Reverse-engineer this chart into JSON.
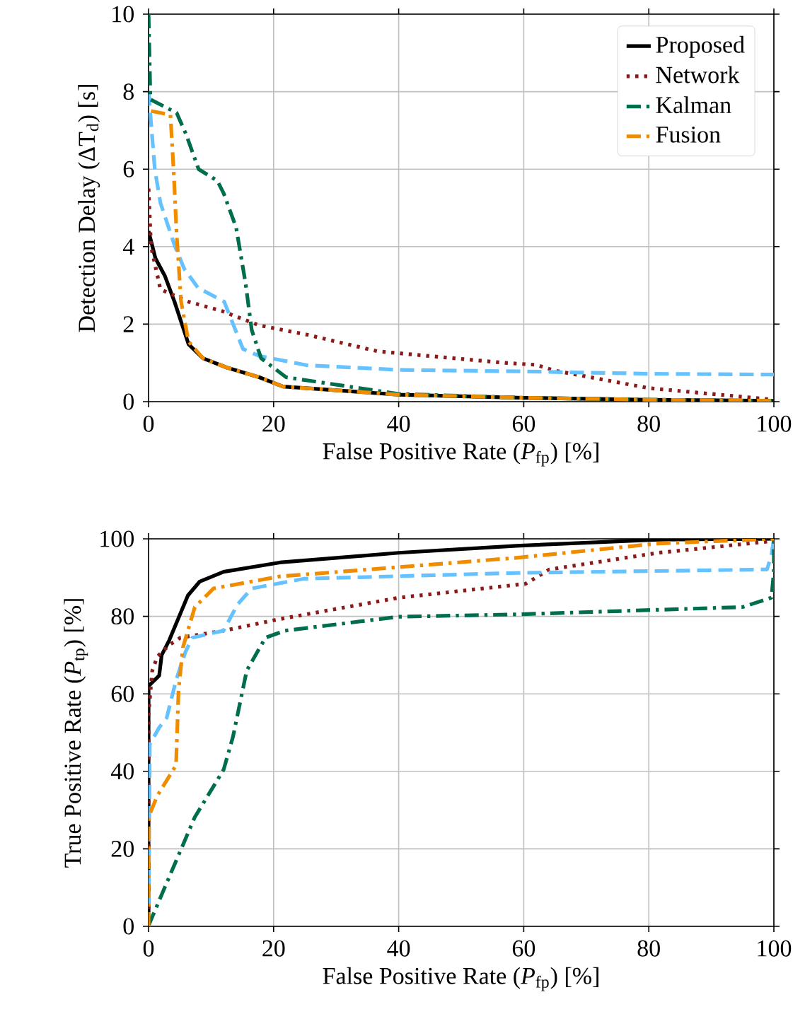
{
  "chart_data": [
    {
      "type": "line",
      "xlabel": "False Positive Rate (*P*$_{fp}$) [%]",
      "ylabel": "Detection Delay (ΔT$_{d}$) [s]",
      "xlim": [
        0,
        100
      ],
      "ylim": [
        0,
        10
      ],
      "xticks": [
        0,
        20,
        40,
        60,
        80,
        100
      ],
      "yticks": [
        0,
        2,
        4,
        6,
        8,
        10
      ],
      "grid": true,
      "legend": "top right",
      "series": [
        {
          "name": "Proposed",
          "color": "#000000",
          "line_style": "solid",
          "x": [
            0,
            1.1,
            2.6,
            4.15,
            6.4,
            8.7,
            12.5,
            17.7,
            21.5,
            40,
            60,
            80,
            100
          ],
          "values": [
            4.4,
            3.7,
            3.25,
            2.58,
            1.48,
            1.12,
            0.88,
            0.63,
            0.39,
            0.18,
            0.1,
            0.05,
            0.02
          ]
        },
        {
          "name": "Network",
          "color": "#8b1a1a",
          "line_style": "dotted",
          "x": [
            0,
            0.4,
            1.9,
            6.4,
            11.7,
            17.7,
            25.3,
            36.6,
            57,
            62,
            65,
            80,
            100
          ],
          "values": [
            5.5,
            4.0,
            2.9,
            2.58,
            2.34,
            1.97,
            1.73,
            1.3,
            1.0,
            0.95,
            0.8,
            0.35,
            0.05
          ]
        },
        {
          "color": "#66c2ff",
          "line_style": "dashed",
          "x": [
            0,
            1,
            1.9,
            4.15,
            5.7,
            7.9,
            12.1,
            13.6,
            15.1,
            17.7,
            25.3,
            40,
            60,
            80,
            100
          ],
          "values": [
            8.0,
            6.0,
            5.13,
            4.04,
            3.43,
            2.94,
            2.58,
            1.97,
            1.36,
            1.18,
            0.94,
            0.82,
            0.78,
            0.72,
            0.7
          ]
        },
        {
          "name": "Kalman",
          "color": "#006e4e",
          "line_style": "dashdot",
          "x": [
            0,
            0.3,
            4.5,
            6,
            8,
            11,
            12,
            14,
            15.5,
            16.5,
            18,
            22,
            40,
            60,
            80,
            100
          ],
          "values": [
            10,
            7.8,
            7.45,
            6.9,
            6.0,
            5.7,
            5.38,
            4.5,
            3.07,
            1.85,
            1.12,
            0.63,
            0.2,
            0.1,
            0.05,
            0.02
          ]
        },
        {
          "name": "Fusion",
          "color": "#f08c00",
          "line_style": "dashdot",
          "x": [
            0.4,
            2,
            3.5,
            4,
            4.5,
            5.2,
            6.4,
            8.7,
            12.5,
            17.7,
            21.5,
            40,
            60,
            80,
            100
          ],
          "values": [
            7.5,
            7.45,
            7.4,
            6.0,
            4.3,
            2.58,
            1.55,
            1.12,
            0.88,
            0.63,
            0.39,
            0.18,
            0.1,
            0.05,
            0.02
          ]
        }
      ]
    },
    {
      "type": "line",
      "xlabel": "False Positive Rate (*P*$_{fp}$) [%]",
      "ylabel": "True Positive Rate (*P*$_{tp}$) [%]",
      "xlim": [
        0,
        100
      ],
      "ylim": [
        0,
        100
      ],
      "xticks": [
        0,
        20,
        40,
        60,
        80,
        100
      ],
      "yticks": [
        0,
        20,
        40,
        60,
        80,
        100
      ],
      "grid": true,
      "series": [
        {
          "color": "#000000",
          "line_style": "solid",
          "x": [
            0,
            0,
            1.7,
            2.1,
            3.3,
            6.3,
            8.2,
            12,
            21,
            40,
            58.8,
            81.5,
            100
          ],
          "values": [
            0,
            62,
            64.7,
            70,
            73.8,
            85.4,
            89,
            91.5,
            93.9,
            96.4,
            98.2,
            99.8,
            100
          ]
        },
        {
          "color": "#8b1a1a",
          "line_style": "dotted",
          "x": [
            0,
            0,
            0.6,
            1.4,
            3.3,
            5.1,
            12,
            21,
            40,
            60.3,
            64.1,
            81.5,
            99.6,
            100
          ],
          "values": [
            0,
            55,
            66,
            69.6,
            72.6,
            74.5,
            76.3,
            79.3,
            84.8,
            88.4,
            92.1,
            96.4,
            99.4,
            100
          ]
        },
        {
          "color": "#66c2ff",
          "line_style": "dashed",
          "x": [
            0,
            0.2,
            1.7,
            2.9,
            4.4,
            5.9,
            7,
            12,
            14.2,
            16.5,
            24.8,
            58.8,
            98.9,
            99.6,
            100
          ],
          "values": [
            0,
            47,
            51.3,
            53.8,
            63.5,
            70.8,
            74.5,
            76.3,
            83,
            87.2,
            89.7,
            91.2,
            92.1,
            95.7,
            100
          ]
        },
        {
          "color": "#006e4e",
          "line_style": "dashdot",
          "x": [
            0,
            2.9,
            7.4,
            12,
            13.5,
            15.7,
            18.7,
            21.8,
            40,
            58.8,
            95,
            99.6,
            100,
            100
          ],
          "values": [
            0.2,
            11.2,
            28.2,
            40.4,
            48.9,
            66,
            74.5,
            76.3,
            79.9,
            80.5,
            82.4,
            84.8,
            91.5,
            100
          ]
        },
        {
          "color": "#f08c00",
          "line_style": "dashdot",
          "x": [
            0,
            0,
            1.4,
            4.4,
            4.8,
            5.5,
            7.4,
            10.4,
            21,
            40,
            58.8,
            81.5,
            100
          ],
          "values": [
            0,
            28.2,
            33.7,
            41.6,
            61,
            72,
            82.4,
            87.2,
            90.3,
            92.7,
            95.1,
            98.8,
            100
          ]
        }
      ]
    }
  ]
}
